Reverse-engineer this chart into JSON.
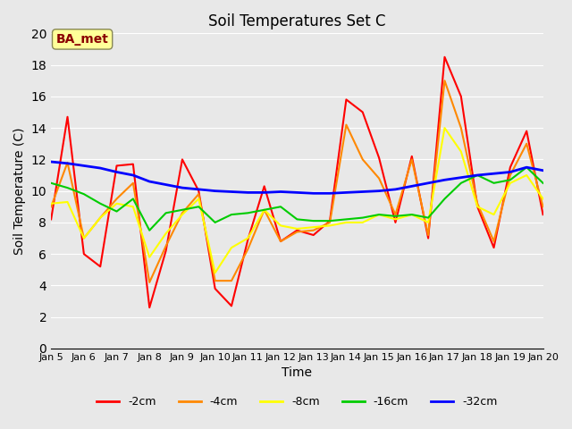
{
  "title": "Soil Temperatures Set C",
  "xlabel": "Time",
  "ylabel": "Soil Temperature (C)",
  "ylim": [
    0,
    20
  ],
  "xlim": [
    0,
    15
  ],
  "annotation": "BA_met",
  "annotation_color": "#8B0000",
  "annotation_bg": "#FFFF99",
  "background_color": "#E8E8E8",
  "plot_bg": "#E8E8E8",
  "grid_color": "#FFFFFF",
  "xtick_labels": [
    "Jan 5",
    "Jan 6",
    "Jan 7",
    "Jan 8",
    "Jan 9",
    "Jan 10",
    "Jan 11",
    "Jan 12",
    "Jan 13",
    "Jan 14",
    "Jan 15",
    "Jan 16",
    "Jan 17",
    "Jan 18",
    "Jan 19",
    "Jan 20"
  ],
  "series": {
    "-2cm": {
      "color": "#FF0000",
      "linewidth": 1.5,
      "values": [
        8.2,
        14.7,
        6.0,
        5.2,
        11.6,
        11.7,
        2.6,
        6.2,
        12.0,
        10.0,
        3.8,
        2.7,
        6.9,
        10.3,
        6.8,
        7.5,
        7.2,
        8.1,
        15.8,
        15.0,
        12.1,
        8.0,
        12.2,
        7.0,
        18.5,
        16.0,
        9.0,
        6.4,
        11.5,
        13.8,
        8.5
      ]
    },
    "-4cm": {
      "color": "#FF8800",
      "linewidth": 1.5,
      "values": [
        9.0,
        11.8,
        7.0,
        8.3,
        9.5,
        10.5,
        4.2,
        6.5,
        8.6,
        9.8,
        4.3,
        4.3,
        6.3,
        8.8,
        6.8,
        7.4,
        7.5,
        8.0,
        14.2,
        12.0,
        10.8,
        8.5,
        12.0,
        7.2,
        17.0,
        14.0,
        9.2,
        6.8,
        11.0,
        13.0,
        9.0
      ]
    },
    "-8cm": {
      "color": "#FFFF00",
      "linewidth": 1.5,
      "values": [
        9.2,
        9.3,
        7.0,
        8.3,
        9.2,
        9.0,
        5.8,
        7.3,
        8.5,
        9.5,
        4.8,
        6.4,
        7.0,
        8.8,
        7.8,
        7.6,
        7.7,
        7.8,
        8.0,
        8.0,
        8.5,
        8.2,
        8.5,
        8.0,
        14.0,
        12.5,
        9.0,
        8.5,
        10.5,
        11.0,
        9.5
      ]
    },
    "-16cm": {
      "color": "#00CC00",
      "linewidth": 1.5,
      "values": [
        10.5,
        10.2,
        9.8,
        9.2,
        8.7,
        9.5,
        7.5,
        8.6,
        8.8,
        9.0,
        8.0,
        8.5,
        8.6,
        8.8,
        9.0,
        8.2,
        8.1,
        8.1,
        8.2,
        8.3,
        8.5,
        8.4,
        8.5,
        8.3,
        9.5,
        10.5,
        11.0,
        10.5,
        10.7,
        11.5,
        10.5
      ]
    },
    "-32cm": {
      "color": "#0000FF",
      "linewidth": 2.0,
      "values": [
        11.85,
        11.75,
        11.6,
        11.45,
        11.2,
        11.0,
        10.6,
        10.4,
        10.2,
        10.1,
        10.0,
        9.95,
        9.9,
        9.9,
        9.95,
        9.9,
        9.85,
        9.85,
        9.9,
        9.95,
        10.0,
        10.1,
        10.3,
        10.5,
        10.7,
        10.85,
        11.0,
        11.1,
        11.2,
        11.5,
        11.3
      ]
    }
  }
}
